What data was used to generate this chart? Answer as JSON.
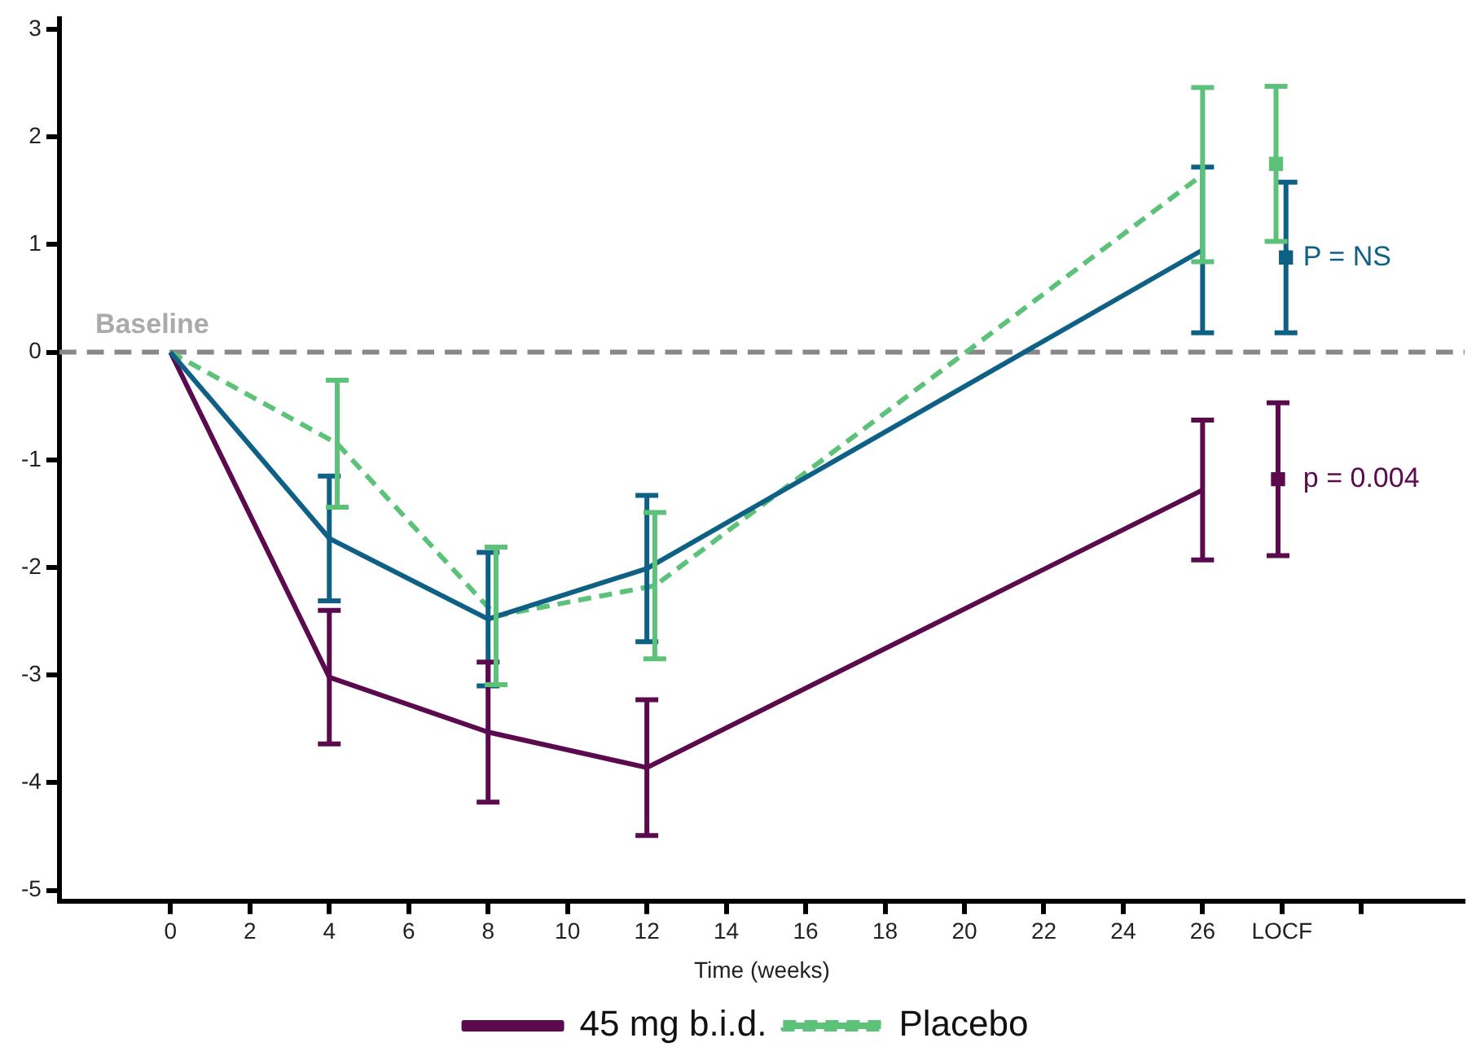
{
  "chart_data": {
    "type": "line",
    "xlabel": "Time (weeks)",
    "xlim": [
      -2.8,
      32.6
    ],
    "ylim": [
      -5.1,
      3.1
    ],
    "xticks": [
      0,
      2,
      4,
      6,
      8,
      10,
      12,
      14,
      16,
      18,
      20,
      22,
      24,
      26,
      {
        "value": 28,
        "label": "LOCF"
      },
      {
        "value": 30,
        "label": null
      }
    ],
    "yticks": [
      -5,
      -4,
      -3,
      -2,
      -1,
      0,
      1,
      2,
      3
    ],
    "grid": false,
    "legend": "bottom",
    "marker": "none",
    "ref_lines": [
      {
        "axis": "y",
        "value": 0,
        "label": "Baseline",
        "color": "#888888",
        "line_style": "dashed"
      }
    ],
    "annotations": [
      {
        "text": "P = NS",
        "x": 28,
        "y": 0.88
      },
      {
        "text": "p = 0.004",
        "x": 28,
        "y": -1.18
      }
    ],
    "series": [
      {
        "color": "#0e6185",
        "line_style": "solid",
        "x": [
          0,
          4,
          8,
          12,
          26
        ],
        "values": [
          0,
          -1.73,
          -2.48,
          -2.01,
          0.95
        ],
        "errors": [
          null,
          0.58,
          0.62,
          0.68,
          0.77
        ]
      },
      {
        "name": "45 mg b.i.d.",
        "color": "#5a0a4d",
        "line_style": "solid",
        "x": [
          0,
          4,
          8,
          12,
          26
        ],
        "values": [
          0,
          -3.02,
          -3.53,
          -3.86,
          -1.28
        ],
        "errors": [
          null,
          0.62,
          0.65,
          0.63,
          0.65
        ]
      },
      {
        "name": "Placebo",
        "color": "#5cc27a",
        "line_style": "dashed",
        "x": [
          0,
          4.2,
          8.2,
          12.2,
          26
        ],
        "values": [
          0,
          -0.85,
          -2.45,
          -2.17,
          1.65
        ],
        "errors": [
          null,
          0.59,
          0.64,
          0.68,
          0.81
        ]
      },
      {
        "type": "scatter",
        "marker": "square",
        "color": "#0e6185",
        "x": [
          28.1
        ],
        "values": [
          0.88
        ],
        "errors": [
          0.7
        ]
      },
      {
        "type": "scatter",
        "marker": "square",
        "color": "#5a0a4d",
        "x": [
          27.9
        ],
        "values": [
          -1.18
        ],
        "errors": [
          0.71
        ]
      },
      {
        "type": "scatter",
        "marker": "square",
        "color": "#5cc27a",
        "x": [
          27.85
        ],
        "values": [
          1.75
        ],
        "errors": [
          0.72
        ]
      }
    ]
  }
}
